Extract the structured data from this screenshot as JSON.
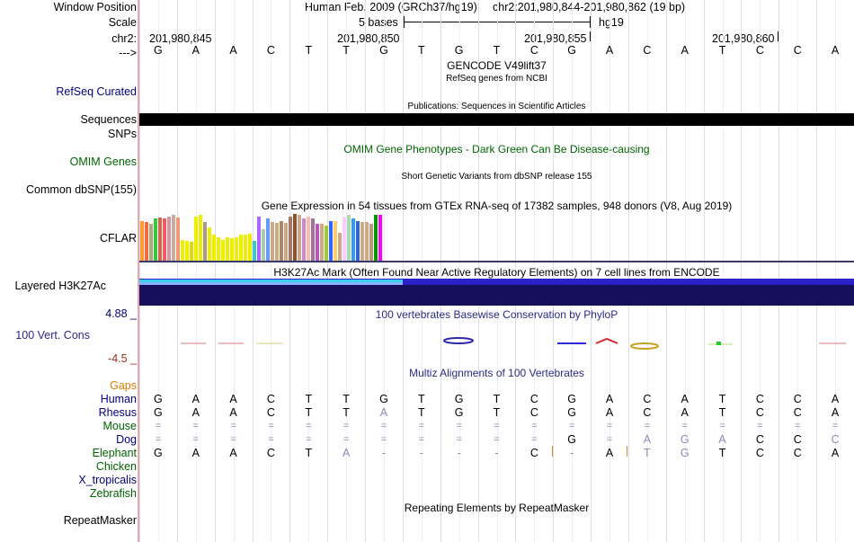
{
  "header": {
    "window_position_label": "Window Position",
    "scale_label": "Scale",
    "chrom_label": "chr2:",
    "strand_label": "--->",
    "assembly": "Human Feb. 2009 (GRCh37/hg19)",
    "position": "chr2:201,980,844-201,980,862 (19 bp)",
    "scale_text": "5 bases",
    "scale_db": "hg19",
    "ticks": [
      "201,980,845",
      "201,980,850",
      "201,980,855",
      "201,980,860"
    ]
  },
  "reference_bases": [
    "G",
    "A",
    "A",
    "C",
    "T",
    "T",
    "G",
    "T",
    "G",
    "T",
    "C",
    "G",
    "A",
    "C",
    "A",
    "T",
    "C",
    "C",
    "A"
  ],
  "tracks": {
    "gencode_title": "GENCODE V49lift37",
    "refseq_title": "RefSeq genes from NCBI",
    "refseq_label": "RefSeq Curated",
    "publications_title": "Publications: Sequences in Scientific Articles",
    "sequences_label": "Sequences",
    "snps_label": "SNPs",
    "omim_title": "OMIM Gene Phenotypes - Dark Green Can Be Disease-causing",
    "omim_label": "OMIM Genes",
    "dbsnp_title": "Short Genetic Variants from dbSNP release 155",
    "dbsnp_label": "Common dbSNP(155)",
    "gtex_title": "Gene Expression in 54 tissues from GTEx RNA-seq of 17382 samples, 948 donors (V8, Aug 2019)",
    "gtex_label": "CFLAR",
    "h3k27ac_title": "H3K27Ac Mark (Often Found Near Active Regulatory Elements) on 7 cell lines from ENCODE",
    "h3k27ac_label": "Layered H3K27Ac",
    "cons_title": "100 vertebrates Basewise Conservation by PhyloP",
    "cons_label": "100 Vert. Cons",
    "cons_max": "4.88 _",
    "cons_min": "-4.5 _",
    "multiz_title": "Multiz Alignments of 100 Vertebrates",
    "gaps_label": "Gaps",
    "repeat_title": "Repeating Elements by RepeatMasker",
    "repeat_label": "RepeatMasker"
  },
  "colors": {
    "navy": "#000080",
    "green": "#006400",
    "gaps_orange": "#d97a00",
    "panel_border": "#e6a8a8",
    "h3k27ac_dark": "#16105a"
  },
  "gtex_values": [
    0.85,
    0.82,
    0.78,
    0.9,
    0.92,
    0.9,
    0.95,
    0.98,
    0.92,
    0.45,
    0.42,
    0.4,
    0.95,
    0.98,
    0.82,
    0.72,
    0.55,
    0.5,
    0.45,
    0.5,
    0.48,
    0.5,
    0.55,
    0.55,
    0.58,
    0.42,
    0.95,
    0.68,
    0.9,
    0.82,
    0.8,
    0.85,
    0.8,
    0.95,
    1.0,
    0.98,
    0.9,
    0.95,
    0.9,
    0.78,
    0.78,
    0.75,
    0.85,
    0.85,
    0.6,
    0.95,
    0.98,
    0.9,
    0.85,
    0.82,
    0.82,
    0.78,
    0.98,
    0.98
  ],
  "gtex_colors": [
    "#ff9933",
    "#ff6633",
    "#aaaa88",
    "#33cc33",
    "#cc6655",
    "#ff5555",
    "#cc99aa",
    "#ccaa99",
    "#ee9977",
    "#eeee00",
    "#eeee00",
    "#dddd00",
    "#eeee00",
    "#eeee00",
    "#aa9988",
    "#eeee00",
    "#eeee00",
    "#eeee00",
    "#eeee00",
    "#eeee00",
    "#eeee00",
    "#eeee00",
    "#eeee00",
    "#eeee00",
    "#eeee00",
    "#33cccc",
    "#aa66ff",
    "#aaccaa",
    "#6699ff",
    "#ccaa88",
    "#ccaa88",
    "#aa8866",
    "#ccaa88",
    "#aa7766",
    "#885533",
    "#ccaa88",
    "#cc88cc",
    "#ffbbaa",
    "#997799",
    "#bb55bb",
    "#ccaa88",
    "#99cc33",
    "#3366ff",
    "#ffcc66",
    "#ccaa88",
    "#ffccff",
    "#aaddaa",
    "#3399ff",
    "#3366cc",
    "#ccaa88",
    "#ccaa88",
    "#bb9977",
    "#009900",
    "#ff00ff"
  ],
  "multiz": [
    {
      "name": "Human",
      "bases": [
        "G",
        "A",
        "A",
        "C",
        "T",
        "T",
        "G",
        "T",
        "G",
        "T",
        "C",
        "G",
        "A",
        "C",
        "A",
        "T",
        "C",
        "C",
        "A"
      ],
      "faded": []
    },
    {
      "name": "Rhesus",
      "bases": [
        "G",
        "A",
        "A",
        "C",
        "T",
        "T",
        "A",
        "T",
        "G",
        "T",
        "C",
        "G",
        "A",
        "C",
        "A",
        "T",
        "C",
        "C",
        "A"
      ],
      "faded": [
        6
      ]
    },
    {
      "name": "Mouse",
      "bases": [
        "=",
        "=",
        "=",
        "=",
        "=",
        "=",
        "=",
        "=",
        "=",
        "=",
        "=",
        "=",
        "=",
        "=",
        "=",
        "=",
        "=",
        "=",
        "="
      ],
      "faded": []
    },
    {
      "name": "Dog",
      "bases": [
        "=",
        "=",
        "=",
        "=",
        "=",
        "=",
        "=",
        "=",
        "=",
        "=",
        "=",
        "G",
        "=",
        "A",
        "G",
        "A",
        "C",
        "C",
        "C"
      ],
      "faded": [
        13,
        14,
        15,
        18
      ]
    },
    {
      "name": "Elephant",
      "bases": [
        "G",
        "A",
        "A",
        "C",
        "T",
        "A",
        "-",
        "-",
        "-",
        "-",
        "C",
        "-",
        "A",
        "T",
        "G",
        "T",
        "C",
        "C",
        "A"
      ],
      "faded": [
        5,
        13,
        14
      ]
    },
    {
      "name": "Chicken",
      "bases": [],
      "faded": []
    },
    {
      "name": "X_tropicalis",
      "bases": [],
      "faded": []
    },
    {
      "name": "Zebrafish",
      "bases": [],
      "faded": []
    }
  ]
}
